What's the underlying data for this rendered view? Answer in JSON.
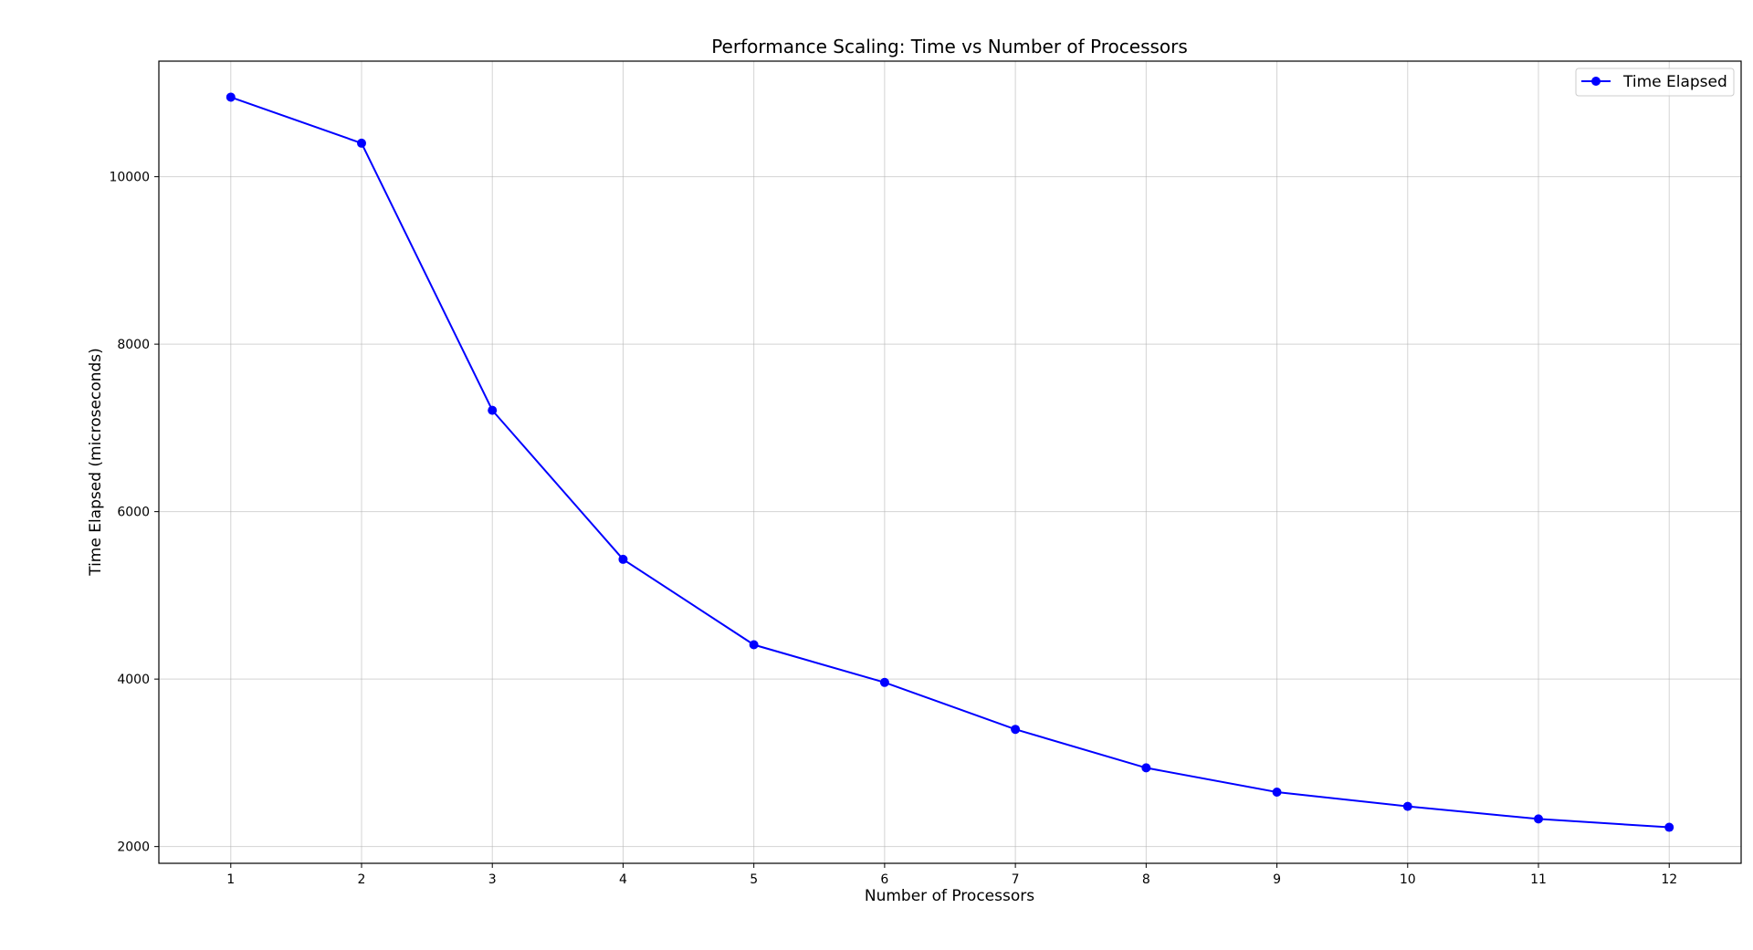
{
  "chart_data": {
    "type": "line",
    "title": "Performance Scaling: Time vs Number of Processors",
    "xlabel": "Number of Processors",
    "ylabel": "Time Elapsed (microseconds)",
    "x": [
      1,
      2,
      3,
      4,
      5,
      6,
      7,
      8,
      9,
      10,
      11,
      12
    ],
    "series": [
      {
        "name": "Time Elapsed",
        "color": "#0000ff",
        "marker": "circle",
        "values": [
          10950,
          10400,
          7210,
          5430,
          4410,
          3960,
          3400,
          2940,
          2650,
          2480,
          2330,
          2230
        ]
      }
    ],
    "xticks": [
      1,
      2,
      3,
      4,
      5,
      6,
      7,
      8,
      9,
      10,
      11,
      12
    ],
    "yticks": [
      2000,
      4000,
      6000,
      8000,
      10000
    ],
    "xlim": [
      0.45,
      12.55
    ],
    "ylim": [
      1800,
      11380
    ],
    "grid": true,
    "legend_position": "top-right"
  }
}
